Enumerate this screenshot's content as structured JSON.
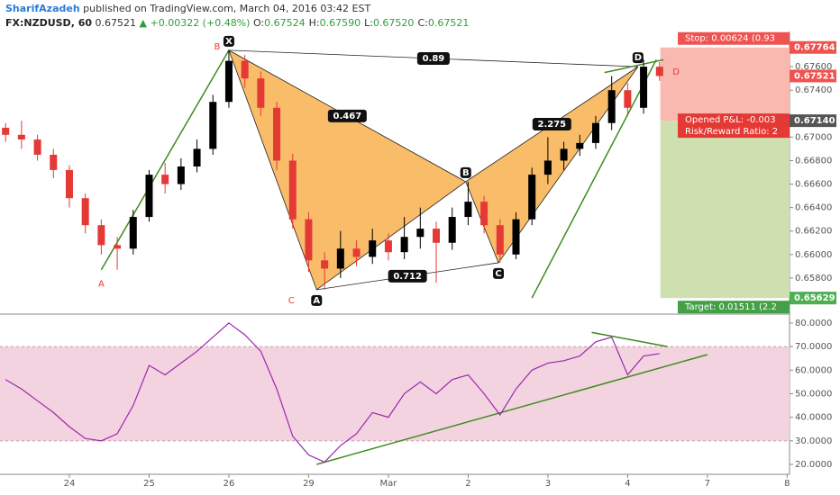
{
  "header": {
    "author": "SharifAzadeh",
    "published": "published on TradingView.com, March 04, 2016 03:42 EST",
    "symbol": "FX:NZDUSD, 60",
    "last": "0.67521",
    "change": "+0.00322 (+0.48%)",
    "ohlc": [
      {
        "label": "O:",
        "value": "0.67524"
      },
      {
        "label": "H:",
        "value": "0.67590"
      },
      {
        "label": "L:",
        "value": "0.67520"
      },
      {
        "label": "C:",
        "value": "0.67521"
      }
    ]
  },
  "chart_data": {
    "type": "candlestick",
    "x": [
      -0.8,
      -0.6,
      -0.4,
      -0.2,
      0,
      0.2,
      0.4,
      0.6,
      0.8,
      1,
      1.2,
      1.4,
      1.6,
      1.8,
      2,
      2.2,
      2.4,
      2.6,
      2.8,
      3,
      3.2,
      3.4,
      3.6,
      3.8,
      4,
      4.2,
      4.4,
      4.6,
      4.8,
      5,
      5.2,
      5.4,
      5.6,
      5.8,
      6,
      6.2,
      6.4,
      6.6,
      6.8,
      7,
      7.2,
      7.4
    ],
    "open": [
      0.6708,
      0.6702,
      0.6698,
      0.6685,
      0.6672,
      0.6648,
      0.6625,
      0.6608,
      0.6605,
      0.6632,
      0.6668,
      0.666,
      0.6675,
      0.669,
      0.673,
      0.6765,
      0.675,
      0.6725,
      0.668,
      0.663,
      0.6595,
      0.6588,
      0.6605,
      0.6598,
      0.6612,
      0.6602,
      0.6615,
      0.6622,
      0.661,
      0.6632,
      0.6645,
      0.6625,
      0.66,
      0.663,
      0.6668,
      0.668,
      0.669,
      0.6695,
      0.6712,
      0.674,
      0.6725,
      0.676
    ],
    "high": [
      0.6712,
      0.6714,
      0.6702,
      0.669,
      0.6676,
      0.6652,
      0.663,
      0.6615,
      0.6638,
      0.6672,
      0.6678,
      0.6682,
      0.6698,
      0.6736,
      0.6774,
      0.677,
      0.6756,
      0.673,
      0.6686,
      0.6636,
      0.6602,
      0.662,
      0.6612,
      0.6622,
      0.6618,
      0.6632,
      0.664,
      0.6628,
      0.664,
      0.6662,
      0.665,
      0.663,
      0.6636,
      0.6674,
      0.67,
      0.6696,
      0.6702,
      0.6718,
      0.6752,
      0.6746,
      0.6766,
      0.6764
    ],
    "low": [
      0.6696,
      0.669,
      0.668,
      0.6665,
      0.664,
      0.6618,
      0.66,
      0.6587,
      0.66,
      0.6628,
      0.6652,
      0.6655,
      0.667,
      0.6685,
      0.6725,
      0.6742,
      0.6718,
      0.6672,
      0.6622,
      0.6585,
      0.657,
      0.658,
      0.659,
      0.6592,
      0.6595,
      0.6596,
      0.6605,
      0.6576,
      0.6604,
      0.6625,
      0.6618,
      0.6593,
      0.6596,
      0.6625,
      0.666,
      0.6672,
      0.6684,
      0.669,
      0.6706,
      0.6718,
      0.672,
      0.6748
    ],
    "close": [
      0.6702,
      0.6698,
      0.6685,
      0.6672,
      0.6648,
      0.6625,
      0.6608,
      0.6605,
      0.6632,
      0.6668,
      0.666,
      0.6675,
      0.669,
      0.673,
      0.6765,
      0.675,
      0.6725,
      0.668,
      0.663,
      0.6595,
      0.6588,
      0.6605,
      0.6598,
      0.6612,
      0.6602,
      0.6615,
      0.6622,
      0.661,
      0.6632,
      0.6645,
      0.6625,
      0.66,
      0.663,
      0.6668,
      0.668,
      0.669,
      0.6695,
      0.6712,
      0.674,
      0.6725,
      0.676,
      0.67521
    ],
    "up_color": "#000000",
    "down_color": "#e53935",
    "xlim": [
      -0.87,
      9.03
    ],
    "xticks": [
      {
        "value": 0,
        "label": "24"
      },
      {
        "value": 1,
        "label": "25"
      },
      {
        "value": 2,
        "label": "26"
      },
      {
        "value": 3,
        "label": "29"
      },
      {
        "value": 4,
        "label": "Mar"
      },
      {
        "value": 5,
        "label": "2"
      },
      {
        "value": 6,
        "label": "3"
      },
      {
        "value": 7,
        "label": "4"
      },
      {
        "value": 8,
        "label": "7"
      },
      {
        "value": 9,
        "label": "8"
      }
    ],
    "ylim": [
      0.655,
      0.679
    ],
    "yticks": [
      {
        "value": 0.658,
        "label": "0.65800"
      },
      {
        "value": 0.66,
        "label": "0.66000"
      },
      {
        "value": 0.662,
        "label": "0.66200"
      },
      {
        "value": 0.664,
        "label": "0.66400"
      },
      {
        "value": 0.666,
        "label": "0.66600"
      },
      {
        "value": 0.668,
        "label": "0.66800"
      },
      {
        "value": 0.67,
        "label": "0.67000"
      },
      {
        "value": 0.674,
        "label": "0.67400"
      },
      {
        "value": 0.676,
        "label": "0.67600"
      }
    ],
    "price_tags": [
      {
        "value": 0.67764,
        "color": "#ef5350"
      },
      {
        "value": 0.67521,
        "color": "#ef5350"
      },
      {
        "value": 0.6714,
        "label": "0.67140",
        "color": "#555555"
      },
      {
        "value": 0.65629,
        "color": "#4caf50"
      }
    ],
    "pattern": {
      "fill": "#f7a535",
      "points": [
        {
          "label": "X",
          "x": 2,
          "y": 0.6774
        },
        {
          "label": "A",
          "x": 3.1,
          "y": 0.657
        },
        {
          "label": "B",
          "x": 4.97,
          "y": 0.6662
        },
        {
          "label": "C",
          "x": 5.38,
          "y": 0.6593
        },
        {
          "label": "D",
          "x": 7.13,
          "y": 0.676
        }
      ],
      "ratios": [
        "0.89",
        "0.467",
        "2.275",
        "0.712"
      ]
    },
    "abcd": {
      "color": "#e53935",
      "points": [
        {
          "label": "A",
          "x": 0.4,
          "y": 0.6587
        },
        {
          "label": "B",
          "x": 2,
          "y": 0.6774
        },
        {
          "label": "C",
          "x": 3.1,
          "y": 0.657
        },
        {
          "label": "D",
          "x": 7.2,
          "y": 0.676
        }
      ]
    },
    "trendline_color": "#3d8b1e",
    "trendlines": [
      [
        {
          "x": 5.8,
          "y": 0.6563
        },
        {
          "x": 7.36,
          "y": 0.6766
        }
      ],
      [
        {
          "x": 6.71,
          "y": 0.6755
        },
        {
          "x": 7.45,
          "y": 0.6766
        }
      ]
    ],
    "position": {
      "start": 7.41,
      "stop": 0.67764,
      "entry": 0.6714,
      "target": 0.65629,
      "stop_label": "Stop: 0.00624 (0.93",
      "pnl_label": "Opened P&L: -0.003",
      "rr_label": "Risk/Reward Ratio: 2",
      "target_label": "Target: 0.01511 (2.2"
    },
    "rsi": {
      "values": [
        56,
        52,
        47,
        42,
        36,
        31,
        30,
        33,
        45,
        62,
        58,
        63,
        68,
        74,
        80,
        75,
        68,
        52,
        32,
        24,
        21,
        28,
        33,
        42,
        40,
        50,
        55,
        50,
        56,
        58,
        50,
        41,
        52,
        60,
        63,
        64,
        66,
        72,
        74,
        58,
        66,
        67
      ],
      "color": "#9c27b0",
      "ylim": [
        15.8,
        83.4
      ],
      "band": [
        30,
        70
      ],
      "yticks": [
        {
          "value": 20,
          "label": "20.0000"
        },
        {
          "value": 30,
          "label": "30.0000"
        },
        {
          "value": 40,
          "label": "40.0000"
        },
        {
          "value": 50,
          "label": "50.0000"
        },
        {
          "value": 60,
          "label": "60.0000"
        },
        {
          "value": 70,
          "label": "70.0000"
        },
        {
          "value": 80,
          "label": "80.0000"
        }
      ],
      "trendlines": [
        [
          {
            "x": 3.1,
            "y": 20
          },
          {
            "x": 8.0,
            "y": 66.6
          }
        ],
        [
          {
            "x": 6.55,
            "y": 76
          },
          {
            "x": 7.5,
            "y": 70
          }
        ]
      ]
    }
  }
}
